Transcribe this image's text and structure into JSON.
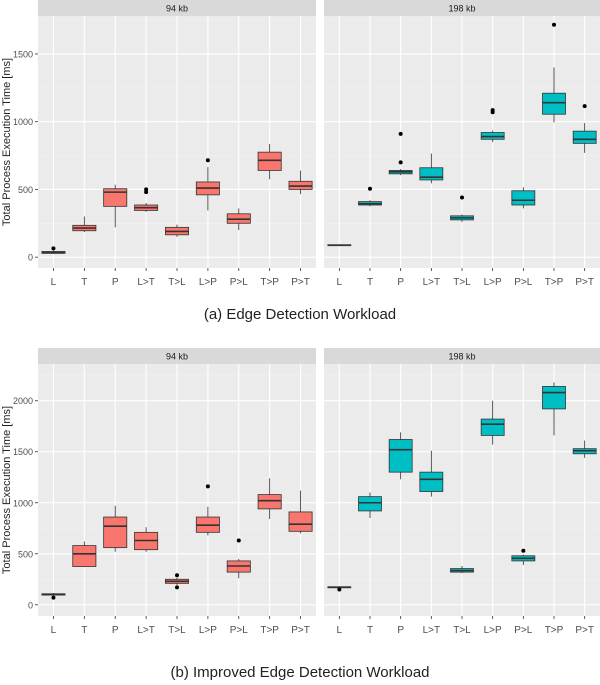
{
  "ylabel": "Total Process Execution Time [ms]",
  "facet_labels": [
    "94 kb",
    "198 kb"
  ],
  "colors": {
    "red_fill": "#F8766D",
    "teal_fill": "#00BFC4",
    "panel_bg": "#EBEBEB",
    "strip_bg": "#D9D9D9",
    "grid_major": "#FFFFFF",
    "grid_minor": "#F2F2F2"
  },
  "captions": [
    "(a) Edge Detection Workload",
    "(b) Improved Edge Detection Workload"
  ],
  "chart_data": [
    {
      "type": "boxplot",
      "caption": "(a) Edge Detection Workload",
      "ylabel": "Total Process Execution Time [ms]",
      "ylim": [
        -80,
        1780
      ],
      "yticks": [
        0,
        500,
        1000,
        1500
      ],
      "categories": [
        "L",
        "T",
        "P",
        "L>T",
        "T>L",
        "L>P",
        "P>L",
        "T>P",
        "P>T"
      ],
      "facets": [
        {
          "label": "94 kb",
          "color": "#F8766D",
          "boxes": [
            {
              "cat": "L",
              "min": 25,
              "q1": 28,
              "median": 35,
              "q3": 42,
              "max": 48,
              "outliers": [
                65
              ]
            },
            {
              "cat": "T",
              "min": 185,
              "q1": 195,
              "median": 215,
              "q3": 235,
              "max": 300,
              "outliers": []
            },
            {
              "cat": "P",
              "min": 220,
              "q1": 375,
              "median": 480,
              "q3": 505,
              "max": 535,
              "outliers": []
            },
            {
              "cat": "L>T",
              "min": 335,
              "q1": 345,
              "median": 365,
              "q3": 385,
              "max": 400,
              "outliers": [
                480,
                500
              ]
            },
            {
              "cat": "T>L",
              "min": 150,
              "q1": 165,
              "median": 190,
              "q3": 220,
              "max": 240,
              "outliers": []
            },
            {
              "cat": "L>P",
              "min": 345,
              "q1": 460,
              "median": 510,
              "q3": 555,
              "max": 665,
              "outliers": [
                715
              ]
            },
            {
              "cat": "P>L",
              "min": 200,
              "q1": 250,
              "median": 280,
              "q3": 320,
              "max": 360,
              "outliers": []
            },
            {
              "cat": "T>P",
              "min": 575,
              "q1": 640,
              "median": 715,
              "q3": 775,
              "max": 835,
              "outliers": []
            },
            {
              "cat": "P>T",
              "min": 465,
              "q1": 500,
              "median": 525,
              "q3": 560,
              "max": 640,
              "outliers": []
            }
          ]
        },
        {
          "label": "198 kb",
          "color": "#00BFC4",
          "boxes": [
            {
              "cat": "L",
              "min": 82,
              "q1": 85,
              "median": 88,
              "q3": 92,
              "max": 95,
              "outliers": []
            },
            {
              "cat": "T",
              "min": 375,
              "q1": 385,
              "median": 395,
              "q3": 410,
              "max": 420,
              "outliers": [
                505
              ]
            },
            {
              "cat": "P",
              "min": 605,
              "q1": 615,
              "median": 630,
              "q3": 640,
              "max": 650,
              "outliers": [
                700,
                910
              ]
            },
            {
              "cat": "L>T",
              "min": 545,
              "q1": 570,
              "median": 590,
              "q3": 660,
              "max": 765,
              "outliers": []
            },
            {
              "cat": "T>L",
              "min": 260,
              "q1": 275,
              "median": 290,
              "q3": 305,
              "max": 315,
              "outliers": [
                440
              ]
            },
            {
              "cat": "L>P",
              "min": 850,
              "q1": 870,
              "median": 890,
              "q3": 920,
              "max": 935,
              "outliers": [
                1070,
                1085
              ]
            },
            {
              "cat": "P>L",
              "min": 360,
              "q1": 385,
              "median": 420,
              "q3": 490,
              "max": 515,
              "outliers": []
            },
            {
              "cat": "T>P",
              "min": 995,
              "q1": 1055,
              "median": 1140,
              "q3": 1210,
              "max": 1400,
              "outliers": [
                1715
              ]
            },
            {
              "cat": "P>T",
              "min": 770,
              "q1": 840,
              "median": 870,
              "q3": 930,
              "max": 990,
              "outliers": [
                1115
              ]
            }
          ]
        }
      ]
    },
    {
      "type": "boxplot",
      "caption": "(b) Improved Edge Detection Workload",
      "ylabel": "Total Process Execution Time [ms]",
      "ylim": [
        -110,
        2360
      ],
      "yticks": [
        0,
        500,
        1000,
        1500,
        2000
      ],
      "categories": [
        "L",
        "T",
        "P",
        "L>T",
        "T>L",
        "L>P",
        "P>L",
        "T>P",
        "P>T"
      ],
      "facets": [
        {
          "label": "94 kb",
          "color": "#F8766D",
          "boxes": [
            {
              "cat": "L",
              "min": 90,
              "q1": 95,
              "median": 100,
              "q3": 108,
              "max": 115,
              "outliers": [
                70
              ]
            },
            {
              "cat": "T",
              "min": 370,
              "q1": 375,
              "median": 500,
              "q3": 580,
              "max": 620,
              "outliers": []
            },
            {
              "cat": "P",
              "min": 520,
              "q1": 560,
              "median": 770,
              "q3": 860,
              "max": 970,
              "outliers": []
            },
            {
              "cat": "L>T",
              "min": 520,
              "q1": 540,
              "median": 630,
              "q3": 710,
              "max": 760,
              "outliers": []
            },
            {
              "cat": "T>L",
              "min": 195,
              "q1": 210,
              "median": 230,
              "q3": 250,
              "max": 265,
              "outliers": [
                170,
                290
              ]
            },
            {
              "cat": "L>P",
              "min": 680,
              "q1": 710,
              "median": 780,
              "q3": 860,
              "max": 960,
              "outliers": [
                1160
              ]
            },
            {
              "cat": "P>L",
              "min": 260,
              "q1": 320,
              "median": 380,
              "q3": 430,
              "max": 450,
              "outliers": [
                630
              ]
            },
            {
              "cat": "T>P",
              "min": 840,
              "q1": 940,
              "median": 1020,
              "q3": 1080,
              "max": 1240,
              "outliers": []
            },
            {
              "cat": "P>T",
              "min": 700,
              "q1": 720,
              "median": 790,
              "q3": 910,
              "max": 1120,
              "outliers": []
            }
          ]
        },
        {
          "label": "198 kb",
          "color": "#00BFC4",
          "boxes": [
            {
              "cat": "L",
              "min": 165,
              "q1": 168,
              "median": 172,
              "q3": 176,
              "max": 180,
              "outliers": [
                150
              ]
            },
            {
              "cat": "T",
              "min": 850,
              "q1": 920,
              "median": 1000,
              "q3": 1060,
              "max": 1100,
              "outliers": []
            },
            {
              "cat": "P",
              "min": 1230,
              "q1": 1300,
              "median": 1520,
              "q3": 1620,
              "max": 1690,
              "outliers": []
            },
            {
              "cat": "L>T",
              "min": 1060,
              "q1": 1110,
              "median": 1230,
              "q3": 1300,
              "max": 1510,
              "outliers": []
            },
            {
              "cat": "T>L",
              "min": 310,
              "q1": 320,
              "median": 335,
              "q3": 355,
              "max": 380,
              "outliers": []
            },
            {
              "cat": "L>P",
              "min": 1570,
              "q1": 1660,
              "median": 1770,
              "q3": 1820,
              "max": 2000,
              "outliers": []
            },
            {
              "cat": "P>L",
              "min": 390,
              "q1": 430,
              "median": 455,
              "q3": 480,
              "max": 490,
              "outliers": [
                530
              ]
            },
            {
              "cat": "T>P",
              "min": 1660,
              "q1": 1920,
              "median": 2080,
              "q3": 2140,
              "max": 2180,
              "outliers": []
            },
            {
              "cat": "P>T",
              "min": 1440,
              "q1": 1480,
              "median": 1510,
              "q3": 1530,
              "max": 1610,
              "outliers": []
            }
          ]
        }
      ]
    }
  ]
}
